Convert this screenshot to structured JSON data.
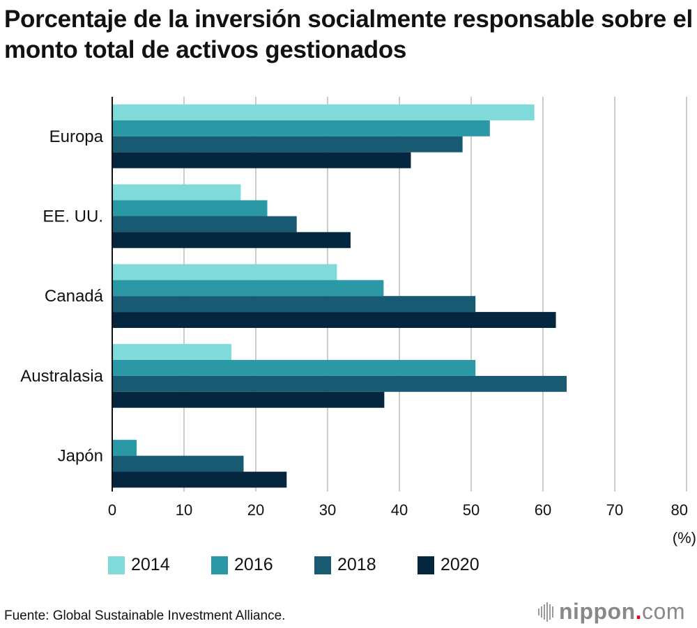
{
  "title": "Porcentaje de la inversión socialmente responsable sobre el monto total de activos gestionados",
  "source": "Fuente: Global Sustainable Investment Alliance.",
  "logo": {
    "name": "nippon",
    "dot": ".",
    "suffix": "com",
    "dot_color": "#e60012"
  },
  "chart_data": {
    "type": "bar",
    "orientation": "horizontal",
    "title": "Porcentaje de la inversión socialmente responsable sobre el monto total de activos gestionados",
    "categories": [
      "Europa",
      "EE. UU.",
      "Canadá",
      "Australasia",
      "Japón"
    ],
    "series": [
      {
        "name": "2014",
        "color": "#7fdad9",
        "values": [
          58.8,
          17.9,
          31.3,
          16.6,
          null
        ]
      },
      {
        "name": "2016",
        "color": "#2a98a5",
        "values": [
          52.6,
          21.6,
          37.8,
          50.6,
          3.4
        ]
      },
      {
        "name": "2018",
        "color": "#185a72",
        "values": [
          48.8,
          25.7,
          50.6,
          63.3,
          18.3
        ]
      },
      {
        "name": "2020",
        "color": "#04263f",
        "values": [
          41.6,
          33.2,
          61.8,
          37.9,
          24.3
        ]
      }
    ],
    "xlabel": "(%)",
    "ylabel": "",
    "xlim": [
      0,
      80
    ],
    "xticks": [
      0,
      10,
      20,
      30,
      40,
      50,
      60,
      70,
      80
    ],
    "grid": true,
    "legend": "bottom"
  }
}
